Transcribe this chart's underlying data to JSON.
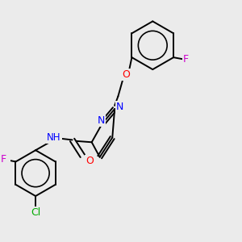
{
  "background_color": "#ebebeb",
  "bond_color": "#000000",
  "atom_colors": {
    "N": "#0000ff",
    "O": "#ff0000",
    "F": "#cc00cc",
    "Cl": "#00aa00",
    "H": "#000000",
    "C": "#000000"
  },
  "figsize": [
    3.0,
    3.0
  ],
  "dpi": 100,
  "lw": 1.4,
  "fontsize": 8.5
}
